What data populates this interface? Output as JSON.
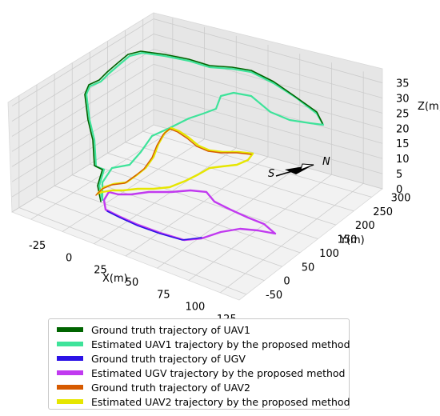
{
  "chart_data": {
    "type": "line",
    "projection": "3d",
    "xlabel": "X(m)",
    "ylabel": "Y(m)",
    "zlabel": "Z(m)",
    "x_ticks": [
      -25,
      0,
      25,
      50,
      75,
      100,
      125
    ],
    "y_ticks": [
      -50,
      0,
      50,
      100,
      150,
      200,
      250,
      300
    ],
    "z_ticks": [
      0,
      5,
      10,
      15,
      20,
      25,
      30,
      35
    ],
    "xlim": [
      -40,
      140
    ],
    "ylim": [
      -70,
      330
    ],
    "zlim": [
      0,
      37
    ],
    "grid": true,
    "legend_position": "bottom",
    "compass": {
      "south_label": "S",
      "north_label": "N"
    },
    "series": [
      {
        "name": "Ground truth trajectory of UAV1",
        "color": "#006400"
      },
      {
        "name": "Estimated UAV1 trajectory by the proposed method",
        "color": "#3ee39a"
      },
      {
        "name": "Ground truth trajectory of UGV",
        "color": "#2b12e6"
      },
      {
        "name": "Estimated UGV trajectory by the proposed method",
        "color": "#c13af0"
      },
      {
        "name": "Ground truth trajectory of UAV2",
        "color": "#d65a00"
      },
      {
        "name": "Estimated UAV2 trajectory by the proposed method",
        "color": "#e6e600"
      }
    ]
  }
}
